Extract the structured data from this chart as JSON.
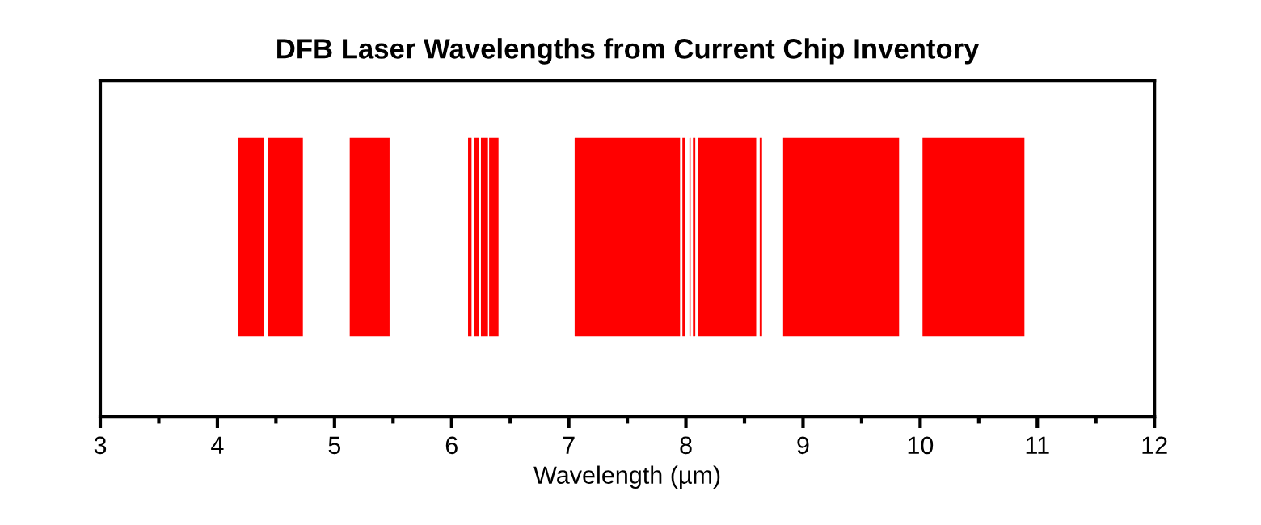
{
  "chart_data": {
    "type": "bar",
    "orientation": "horizontal",
    "title": "DFB Laser Wavelengths from Current Chip Inventory",
    "xlabel": "Wavelength (µm)",
    "xlim": [
      3,
      12
    ],
    "xticks": [
      3,
      4,
      5,
      6,
      7,
      8,
      9,
      10,
      11,
      12
    ],
    "tick_labels": "x",
    "categories": [
      null
    ],
    "series": [
      {
        "color": "#ff0000",
        "base": [
          4.18
        ],
        "values": [
          0.22
        ]
      },
      {
        "color": "#ff0000",
        "base": [
          4.43
        ],
        "values": [
          0.3
        ]
      },
      {
        "color": "#ff0000",
        "base": [
          5.13
        ],
        "values": [
          0.34
        ]
      },
      {
        "color": "#ff0000",
        "base": [
          6.14
        ],
        "values": [
          0.03
        ]
      },
      {
        "color": "#ff0000",
        "base": [
          6.19
        ],
        "values": [
          0.04
        ]
      },
      {
        "color": "#ff0000",
        "base": [
          6.25
        ],
        "values": [
          0.06
        ]
      },
      {
        "color": "#ff0000",
        "base": [
          6.32
        ],
        "values": [
          0.08
        ]
      },
      {
        "color": "#ff0000",
        "base": [
          7.05
        ],
        "values": [
          0.9
        ]
      },
      {
        "color": "#ff0000",
        "base": [
          7.97
        ],
        "values": [
          0.02
        ]
      },
      {
        "color": "#ff0000",
        "base": [
          8.03
        ],
        "values": [
          0.01
        ]
      },
      {
        "color": "#ff0000",
        "base": [
          8.06
        ],
        "values": [
          0.02
        ]
      },
      {
        "color": "#ff0000",
        "base": [
          8.1
        ],
        "values": [
          0.5
        ]
      },
      {
        "color": "#ff0000",
        "base": [
          8.63
        ],
        "values": [
          0.02
        ]
      },
      {
        "color": "#ff0000",
        "base": [
          8.83
        ],
        "values": [
          0.99
        ]
      },
      {
        "color": "#ff0000",
        "base": [
          10.02
        ],
        "values": [
          0.87
        ]
      }
    ]
  }
}
